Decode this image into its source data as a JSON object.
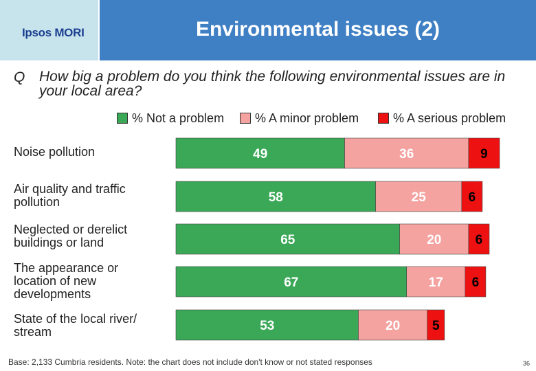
{
  "header": {
    "logo": "Ipsos MORI",
    "title": "Environmental issues (2)"
  },
  "question": {
    "marker": "Q",
    "text": "How big a problem do you think the following environmental issues are in your local area?"
  },
  "colors": {
    "header_bg": "#3f7fc4",
    "logo_bg": "#c7e4ec",
    "not_problem": "#3aa857",
    "minor_problem": "#f4a3a0",
    "serious_problem": "#ee1111"
  },
  "chart_data": {
    "type": "bar",
    "orientation": "horizontal",
    "stacked": true,
    "categories": [
      "Noise pollution",
      "Air quality and traffic pollution",
      "Neglected or derelict buildings or land",
      "The appearance or location of new developments",
      "State of the local river/ stream"
    ],
    "series": [
      {
        "name": "% Not a problem",
        "color": "#3aa857",
        "values": [
          49,
          58,
          65,
          67,
          53
        ]
      },
      {
        "name": "% A minor problem",
        "color": "#f4a3a0",
        "values": [
          36,
          25,
          20,
          17,
          20
        ]
      },
      {
        "name": "% A serious problem",
        "color": "#ee1111",
        "values": [
          9,
          6,
          6,
          6,
          5
        ]
      }
    ],
    "data_labels": true,
    "legend_position": "top"
  },
  "footer": {
    "note": "Base: 2,133 Cumbria residents. Note: the chart does not include don't know or not stated responses",
    "page": "36"
  }
}
